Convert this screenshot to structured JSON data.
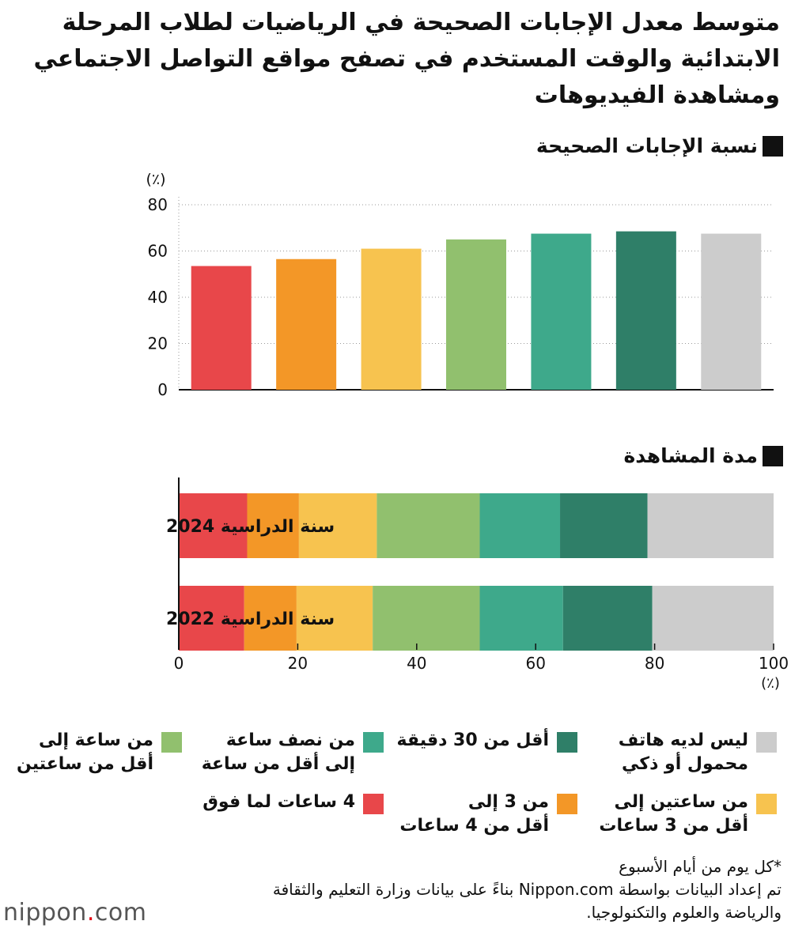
{
  "title": "متوسط معدل الإجابات الصحيحة في الرياضيات لطلاب المرحلة الابتدائية والوقت المستخدم في تصفح مواقع التواصل الاجتماعي ومشاهدة الفيديوهات",
  "section1_title": "نسبة الإجابات الصحيحة",
  "section2_title": "مدة المشاهدة",
  "colors": {
    "cat1": "#e8474a",
    "cat2": "#f39727",
    "cat3": "#f7c34f",
    "cat4": "#91c06e",
    "cat5": "#3ea98b",
    "cat6": "#2f7f68",
    "cat7": "#cccccc"
  },
  "legend": [
    {
      "key": "cat7",
      "label": "ليس لديه هاتف\nمحمول أو ذكي"
    },
    {
      "key": "cat6",
      "label": "أقل من 30 دقيقة"
    },
    {
      "key": "cat5",
      "label": "من نصف ساعة\nإلى أقل من ساعة"
    },
    {
      "key": "cat4",
      "label": "من ساعة إلى\nأقل من ساعتين"
    },
    {
      "key": "cat3",
      "label": "من ساعتين إلى\nأقل من 3 ساعات"
    },
    {
      "key": "cat2",
      "label": "من 3 إلى\nأقل من 4 ساعات"
    },
    {
      "key": "cat1",
      "label": "4 ساعات لما فوق"
    }
  ],
  "notes": {
    "line1": "*كل يوم من أيام الأسبوع",
    "line2": "تم إعداد البيانات بواسطة Nippon.com بناءً على بيانات وزارة التعليم والثقافة والرياضة والعلوم والتكنولوجيا."
  },
  "logo": {
    "main": "nippon",
    "dot": ".",
    "suffix": "com"
  },
  "chart_data": [
    {
      "type": "bar",
      "title": "نسبة الإجابات الصحيحة",
      "yunit": "(٪)",
      "ylim": [
        0,
        80
      ],
      "yticks": [
        "0",
        "20",
        "40",
        "60",
        "80"
      ],
      "grid": true,
      "categories": [
        "4 ساعات لما فوق",
        "من 3 إلى أقل من 4 ساعات",
        "من ساعتين إلى أقل من 3 ساعات",
        "من ساعة إلى أقل من ساعتين",
        "من نصف ساعة إلى أقل من ساعة",
        "أقل من 30 دقيقة",
        "ليس لديه هاتف محمول أو ذكي"
      ],
      "values": [
        53.5,
        56.5,
        61.0,
        65.0,
        67.5,
        68.5,
        67.5
      ],
      "color_keys": [
        "cat1",
        "cat2",
        "cat3",
        "cat4",
        "cat5",
        "cat6",
        "cat7"
      ]
    },
    {
      "type": "bar",
      "orientation": "horizontal-stacked",
      "title": "مدة المشاهدة",
      "xunit": "(٪)",
      "xlim": [
        0,
        100
      ],
      "xticks": [
        "0",
        "20",
        "40",
        "60",
        "80",
        "100"
      ],
      "categories": [
        "سنة الدراسية 2024",
        "سنة الدراسية 2022"
      ],
      "series": [
        {
          "key": "cat1",
          "name": "4 ساعات لما فوق",
          "values": [
            11.5,
            11.0
          ]
        },
        {
          "key": "cat2",
          "name": "من 3 إلى أقل من 4 ساعات",
          "values": [
            8.7,
            8.8
          ]
        },
        {
          "key": "cat3",
          "name": "من ساعتين إلى أقل من 3 ساعات",
          "values": [
            13.1,
            12.8
          ]
        },
        {
          "key": "cat4",
          "name": "من ساعة إلى أقل من ساعتين",
          "values": [
            17.3,
            18.0
          ]
        },
        {
          "key": "cat5",
          "name": "من نصف ساعة إلى أقل من ساعة",
          "values": [
            13.5,
            14.0
          ]
        },
        {
          "key": "cat6",
          "name": "أقل من 30 دقيقة",
          "values": [
            14.7,
            15.0
          ]
        },
        {
          "key": "cat7",
          "name": "ليس لديه هاتف محمول أو ذكي",
          "values": [
            21.2,
            20.4
          ]
        }
      ]
    }
  ]
}
